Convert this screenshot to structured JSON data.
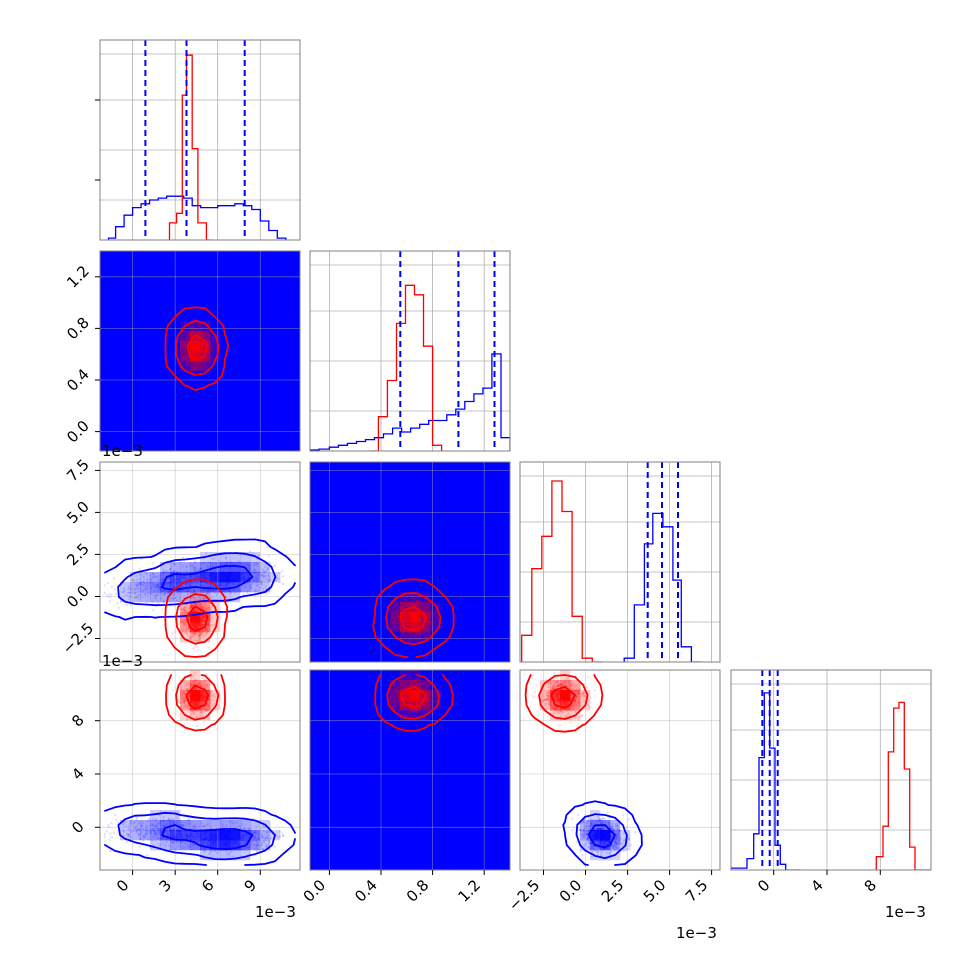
{
  "chart_data": {
    "type": "corner",
    "parameters": 4,
    "colors": {
      "blue": "#0000ff",
      "red": "#ff0000",
      "frame": "#808080",
      "grid": "#b0b0b0"
    },
    "offset_label": "1e−3",
    "ticks": {
      "p0": {
        "values": [
          0,
          3,
          6,
          9
        ],
        "labels": [
          "0",
          "3",
          "6",
          "9"
        ]
      },
      "p1": {
        "values": [
          0.0,
          0.4,
          0.8,
          1.2
        ],
        "labels": [
          "0.0",
          "0.4",
          "0.8",
          "1.2"
        ]
      },
      "p2": {
        "values": [
          -2.5,
          0.0,
          2.5,
          5.0,
          7.5
        ],
        "labels": [
          "−2.5",
          "0.0",
          "2.5",
          "5.0",
          "7.5"
        ]
      },
      "p3": {
        "values": [
          0,
          4,
          8
        ],
        "labels": [
          "0",
          "4",
          "8"
        ]
      }
    },
    "ranges": {
      "p0": [
        -2.3,
        11.8
      ],
      "p1": [
        -0.15,
        1.4
      ],
      "p2": [
        -3.9,
        8.0
      ],
      "p3": [
        -3.2,
        11.8
      ]
    },
    "quantile_lines": {
      "p0": [
        0.9,
        3.8,
        7.9
      ],
      "p1": [
        0.55,
        1.0,
        1.28
      ],
      "p2": [
        3.7,
        4.55,
        5.5
      ],
      "p3": [
        -0.85,
        -0.3,
        0.3
      ]
    },
    "histograms": {
      "p0": {
        "edges": [
          -1.7,
          -1.2,
          -0.6,
          0.0,
          0.6,
          1.2,
          1.8,
          2.4,
          3.0,
          3.6,
          4.2,
          4.8,
          5.4,
          6.0,
          6.6,
          7.2,
          7.8,
          8.4,
          9.0,
          9.6,
          10.2,
          10.8
        ],
        "blue": [
          0.01,
          0.07,
          0.13,
          0.17,
          0.19,
          0.21,
          0.22,
          0.23,
          0.23,
          0.22,
          0.18,
          0.17,
          0.17,
          0.18,
          0.18,
          0.19,
          0.18,
          0.16,
          0.1,
          0.05,
          0.01
        ],
        "red_edges": [
          2.6,
          3.1,
          3.5,
          3.8,
          4.2,
          4.6,
          5.2,
          5.6
        ],
        "red": [
          0.09,
          0.14,
          0.76,
          0.97,
          0.48,
          0.09,
          0.0
        ]
      },
      "p1": {
        "edges": [
          -0.15,
          -0.08,
          0.0,
          0.07,
          0.14,
          0.21,
          0.28,
          0.35,
          0.42,
          0.49,
          0.56,
          0.63,
          0.7,
          0.77,
          0.84,
          0.91,
          0.98,
          1.05,
          1.12,
          1.19,
          1.26,
          1.33,
          1.4
        ],
        "blue": [
          0.005,
          0.01,
          0.02,
          0.03,
          0.04,
          0.05,
          0.06,
          0.07,
          0.09,
          0.12,
          0.1,
          0.12,
          0.14,
          0.16,
          0.16,
          0.19,
          0.22,
          0.26,
          0.3,
          0.33,
          0.51,
          0.07
        ],
        "red_edges": [
          0.31,
          0.38,
          0.45,
          0.52,
          0.59,
          0.66,
          0.73,
          0.8,
          0.87
        ],
        "red": [
          0.0,
          0.18,
          0.37,
          0.67,
          0.87,
          0.82,
          0.55,
          0.03
        ]
      },
      "p2": {
        "edges": [
          2.3,
          2.9,
          3.5,
          4.0,
          4.6,
          5.2,
          5.7,
          6.3,
          6.9
        ],
        "blue": [
          0.02,
          0.3,
          0.62,
          0.78,
          0.71,
          0.43,
          0.08,
          0.0
        ],
        "red_edges": [
          -4.4,
          -3.8,
          -3.2,
          -2.6,
          -2.0,
          -1.4,
          -0.8,
          -0.2,
          0.4,
          1.0
        ],
        "red": [
          0.0,
          0.14,
          0.49,
          0.66,
          0.95,
          0.79,
          0.24,
          0.02,
          0.0
        ]
      },
      "p3": {
        "edges": [
          -3.2,
          -2.0,
          -1.5,
          -1.1,
          -0.7,
          -0.3,
          0.1,
          0.5,
          0.9,
          1.4,
          2.0
        ],
        "blue": [
          0.01,
          0.06,
          0.19,
          0.59,
          0.93,
          0.64,
          0.13,
          0.03,
          0.0,
          0.0
        ],
        "red_edges": [
          7.7,
          8.2,
          8.6,
          9.0,
          9.4,
          9.8,
          10.2,
          10.6,
          11.8
        ],
        "red": [
          0.07,
          0.23,
          0.62,
          0.85,
          0.88,
          0.53,
          0.12,
          0.0
        ]
      }
    },
    "populations": {
      "blue": {
        "curve": [
          [
            0.0,
            5.6,
            0.25,
            0.0
          ],
          [
            3.5,
            4.2,
            0.95,
            -0.5
          ],
          [
            6.5,
            3.8,
            1.15,
            -1.0
          ],
          [
            8.5,
            4.3,
            1.3,
            -0.7
          ]
        ],
        "spread": [
          1.3,
          0.18,
          0.55,
          0.5
        ]
      },
      "red": {
        "center": [
          4.5,
          0.65,
          -1.3,
          9.8
        ],
        "spread": [
          0.5,
          0.09,
          0.6,
          0.6
        ]
      }
    }
  }
}
